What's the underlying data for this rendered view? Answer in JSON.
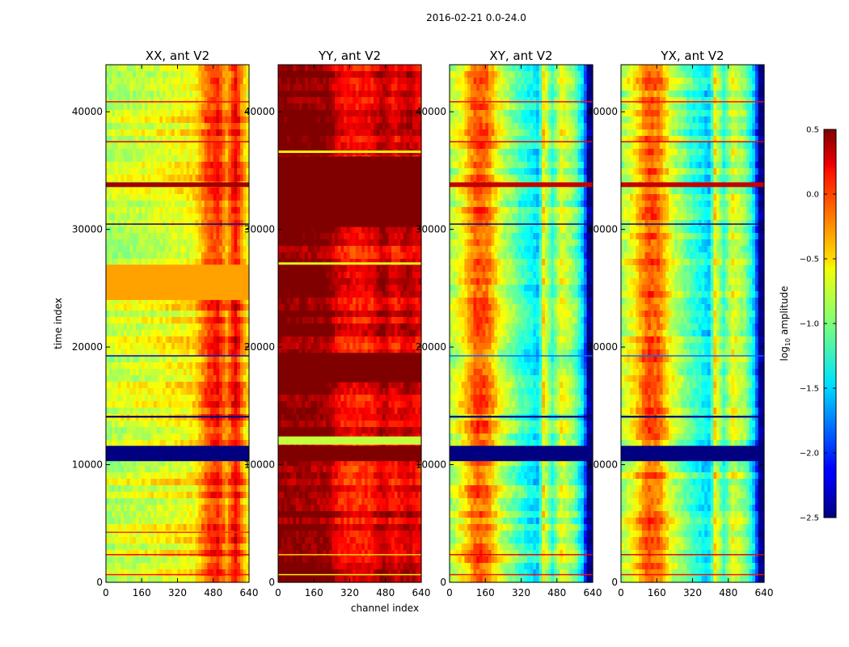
{
  "chart_data": {
    "type": "heatmap",
    "suptitle": "2016-02-21 0.0-24.0",
    "xlabel": "channel index",
    "ylabel": "time index",
    "xlim": [
      0,
      640
    ],
    "ylim": [
      0,
      44000
    ],
    "x_ticks": [
      "0",
      "160",
      "320",
      "480",
      "640"
    ],
    "y_ticks": [
      "0",
      "10000",
      "20000",
      "30000",
      "40000"
    ],
    "colormap": "jet",
    "colorbar": {
      "label_prefix": "log",
      "label_sub": "10",
      "label_suffix": " amplitude",
      "range": [
        -2.5,
        0.5
      ],
      "ticks": [
        "0.5",
        "0.0",
        "−0.5",
        "−1.0",
        "−1.5",
        "−2.0",
        "−2.5"
      ],
      "tick_values": [
        0.5,
        0.0,
        -0.5,
        -1.0,
        -1.5,
        -2.0,
        -2.5
      ]
    },
    "panels": [
      {
        "title": "XX, ant V2",
        "base_level": -0.75,
        "column_profile": [
          [
            0,
            -0.8
          ],
          [
            80,
            -0.75
          ],
          [
            200,
            -0.7
          ],
          [
            400,
            -0.55
          ],
          [
            450,
            -0.1
          ],
          [
            500,
            0.1
          ],
          [
            540,
            -0.3
          ],
          [
            580,
            0.2
          ],
          [
            620,
            -0.4
          ],
          [
            640,
            -0.6
          ]
        ],
        "flag_rows": [
          [
            10300,
            11600,
            -2.5
          ],
          [
            600,
            700,
            0.1
          ],
          [
            2300,
            2400,
            0.2
          ],
          [
            4200,
            4300,
            0.0
          ],
          [
            14000,
            14150,
            -2.5
          ],
          [
            19200,
            19300,
            -2.3
          ],
          [
            24000,
            27000,
            -0.35
          ],
          [
            30400,
            30500,
            -2.5
          ],
          [
            33600,
            34000,
            0.4
          ],
          [
            37400,
            37500,
            0.2
          ],
          [
            40800,
            40900,
            0.1
          ]
        ]
      },
      {
        "title": "YY, ant V2",
        "base_level": 0.35,
        "column_profile": [
          [
            0,
            0.5
          ],
          [
            60,
            0.5
          ],
          [
            220,
            0.45
          ],
          [
            270,
            0.15
          ],
          [
            340,
            0.05
          ],
          [
            420,
            0.1
          ],
          [
            470,
            0.35
          ],
          [
            520,
            0.1
          ],
          [
            580,
            0.3
          ],
          [
            640,
            0.1
          ]
        ],
        "flag_rows": [
          [
            10300,
            11600,
            0.5
          ],
          [
            11700,
            12400,
            -0.8
          ],
          [
            17000,
            19500,
            0.5
          ],
          [
            30200,
            36200,
            0.5
          ],
          [
            27000,
            27200,
            -0.7
          ],
          [
            36500,
            36700,
            -0.6
          ],
          [
            600,
            700,
            -0.6
          ],
          [
            2300,
            2400,
            -0.5
          ]
        ]
      },
      {
        "title": "XY, ant V2",
        "base_level": -1.3,
        "column_profile": [
          [
            0,
            -0.9
          ],
          [
            60,
            -0.6
          ],
          [
            120,
            -0.1
          ],
          [
            170,
            -0.2
          ],
          [
            220,
            -0.7
          ],
          [
            320,
            -1.2
          ],
          [
            400,
            -1.5
          ],
          [
            420,
            -0.6
          ],
          [
            460,
            -1.2
          ],
          [
            500,
            -0.7
          ],
          [
            560,
            -1.0
          ],
          [
            600,
            -1.6
          ],
          [
            620,
            -2.5
          ],
          [
            640,
            -2.5
          ]
        ],
        "flag_rows": [
          [
            10300,
            11600,
            -2.5
          ],
          [
            14000,
            14150,
            -2.5
          ],
          [
            19200,
            19300,
            -1.8
          ],
          [
            30400,
            30500,
            -2.5
          ],
          [
            33600,
            34000,
            0.3
          ],
          [
            600,
            700,
            0.1
          ],
          [
            2300,
            2400,
            0.2
          ],
          [
            37400,
            37500,
            0.2
          ],
          [
            40800,
            40900,
            0.1
          ]
        ]
      },
      {
        "title": "YX, ant V2",
        "base_level": -1.3,
        "column_profile": [
          [
            0,
            -0.9
          ],
          [
            60,
            -0.6
          ],
          [
            120,
            -0.1
          ],
          [
            170,
            -0.2
          ],
          [
            220,
            -0.7
          ],
          [
            320,
            -1.2
          ],
          [
            400,
            -1.5
          ],
          [
            420,
            -0.6
          ],
          [
            460,
            -1.2
          ],
          [
            500,
            -0.7
          ],
          [
            560,
            -1.0
          ],
          [
            600,
            -1.6
          ],
          [
            620,
            -2.5
          ],
          [
            640,
            -2.5
          ]
        ],
        "flag_rows": [
          [
            10300,
            11600,
            -2.5
          ],
          [
            14000,
            14150,
            -2.5
          ],
          [
            19200,
            19300,
            -1.8
          ],
          [
            30400,
            30500,
            -2.5
          ],
          [
            33600,
            34000,
            0.3
          ],
          [
            600,
            700,
            0.1
          ],
          [
            2300,
            2400,
            0.2
          ],
          [
            37400,
            37500,
            0.2
          ],
          [
            40800,
            40900,
            0.1
          ]
        ]
      }
    ]
  }
}
